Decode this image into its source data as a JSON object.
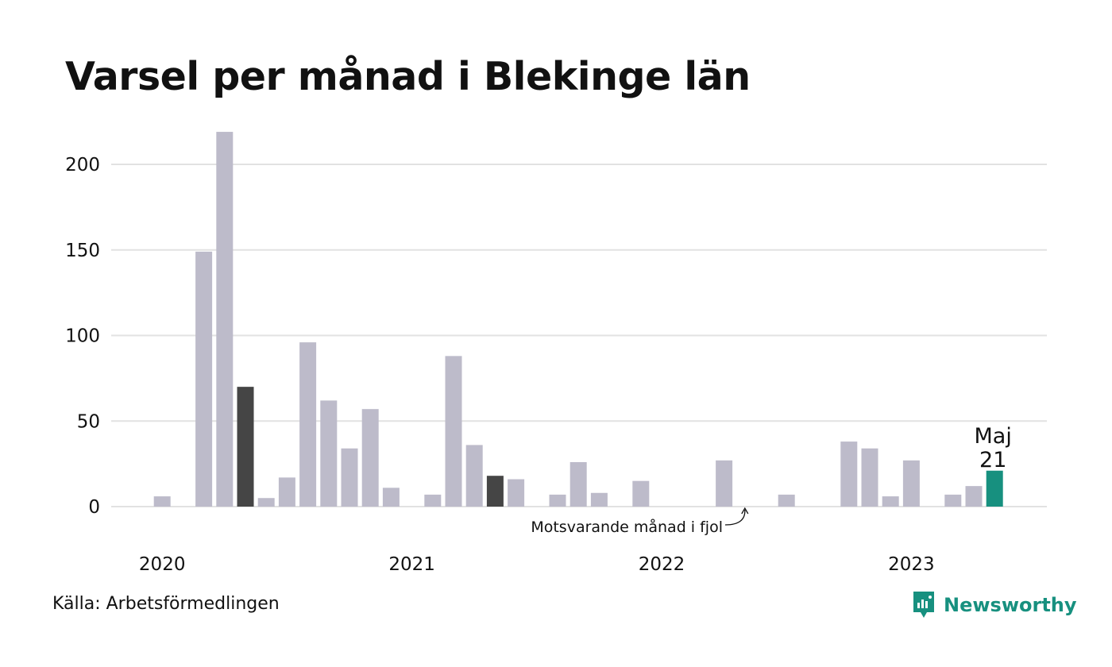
{
  "title": "Varsel per månad i Blekinge län",
  "source": "Källa: Arbetsförmedlingen",
  "brand": {
    "name": "Newsworthy",
    "icon": "newsworthy-logo-icon",
    "color": "#17907f"
  },
  "chart_data": {
    "type": "bar",
    "title": "Varsel per månad i Blekinge län",
    "xlabel": "",
    "ylabel": "",
    "ylim": [
      0,
      225
    ],
    "yticks": [
      0,
      50,
      100,
      150,
      200
    ],
    "grid": true,
    "x_ticks": [
      "2020",
      "2021",
      "2022",
      "2023"
    ],
    "categories": [
      "2019-12",
      "2020-01",
      "2020-02",
      "2020-03",
      "2020-04",
      "2020-05",
      "2020-06",
      "2020-07",
      "2020-08",
      "2020-09",
      "2020-10",
      "2020-11",
      "2020-12",
      "2021-01",
      "2021-02",
      "2021-03",
      "2021-04",
      "2021-05",
      "2021-06",
      "2021-07",
      "2021-08",
      "2021-09",
      "2021-10",
      "2021-11",
      "2021-12",
      "2022-01",
      "2022-02",
      "2022-03",
      "2022-04",
      "2022-05",
      "2022-06",
      "2022-07",
      "2022-08",
      "2022-09",
      "2022-10",
      "2022-11",
      "2022-12",
      "2023-01",
      "2023-02",
      "2023-03",
      "2023-04",
      "2023-05"
    ],
    "values": [
      0,
      6,
      0,
      149,
      219,
      70,
      5,
      17,
      96,
      62,
      34,
      57,
      11,
      0,
      7,
      88,
      36,
      18,
      16,
      0,
      7,
      26,
      8,
      0,
      15,
      0,
      0,
      0,
      27,
      0,
      0,
      7,
      0,
      0,
      38,
      34,
      6,
      27,
      0,
      7,
      12,
      21
    ],
    "highlight": [
      {
        "category": "2020-05",
        "role": "same-month"
      },
      {
        "category": "2021-05",
        "role": "same-month"
      },
      {
        "category": "2022-05",
        "role": "same-month"
      },
      {
        "category": "2023-05",
        "role": "current"
      }
    ],
    "colors": {
      "default": "#bdbbca",
      "same_month": "#454545",
      "current": "#17907f",
      "grid": "#e2e2e2"
    },
    "annotations": [
      {
        "text": "Motsvarande månad i fjol",
        "target": "2022-05"
      },
      {
        "text": "Maj",
        "target": "2023-05"
      },
      {
        "text": "21",
        "target": "2023-05"
      }
    ]
  }
}
